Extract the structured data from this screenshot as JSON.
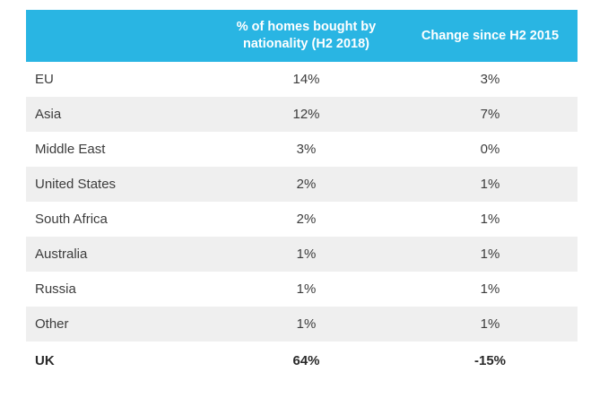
{
  "colors": {
    "header_bg": "#29b5e3",
    "header_text": "#ffffff",
    "row_shade": "#efefef",
    "row_plain": "#ffffff",
    "body_text": "#3c3c3c"
  },
  "chart_data": {
    "type": "table",
    "columns": [
      "",
      "% of homes bought by nationality (H2 2018)",
      "Change since H2 2015"
    ],
    "rows": [
      {
        "name": "EU",
        "share": "14%",
        "change": "3%"
      },
      {
        "name": "Asia",
        "share": "12%",
        "change": "7%"
      },
      {
        "name": "Middle East",
        "share": "3%",
        "change": "0%"
      },
      {
        "name": "United States",
        "share": "2%",
        "change": "1%"
      },
      {
        "name": "South Africa",
        "share": "2%",
        "change": "1%"
      },
      {
        "name": "Australia",
        "share": "1%",
        "change": "1%"
      },
      {
        "name": "Russia",
        "share": "1%",
        "change": "1%"
      },
      {
        "name": "Other",
        "share": "1%",
        "change": "1%"
      },
      {
        "name": "UK",
        "share": "64%",
        "change": "-15%",
        "bold": true
      }
    ]
  }
}
